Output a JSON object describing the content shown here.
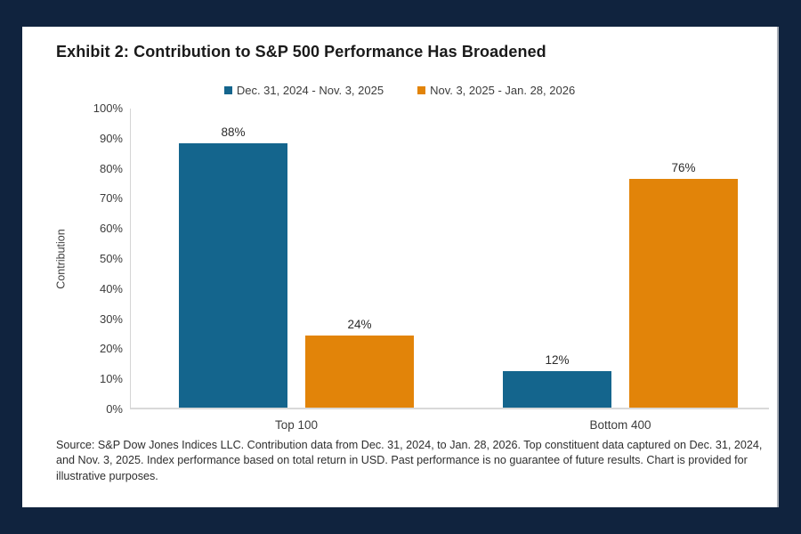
{
  "frame": {
    "background_color": "#10233e",
    "panel_color": "#ffffff"
  },
  "title": "Exhibit 2: Contribution to S&P 500 Performance Has Broadened",
  "legend": {
    "items": [
      {
        "label": "Dec. 31, 2024 - Nov. 3, 2025",
        "color": "#14658d"
      },
      {
        "label": "Nov. 3, 2025 - Jan. 28, 2026",
        "color": "#e28409"
      }
    ]
  },
  "chart_data": {
    "type": "bar",
    "title": "Exhibit 2: Contribution to S&P 500 Performance Has Broadened",
    "categories": [
      "Top 100",
      "Bottom 400"
    ],
    "series": [
      {
        "name": "Dec. 31, 2024 - Nov. 3, 2025",
        "color": "#14658d",
        "values": [
          88,
          12
        ]
      },
      {
        "name": "Nov. 3, 2025 - Jan. 28, 2026",
        "color": "#e28409",
        "values": [
          24,
          76
        ]
      }
    ],
    "value_labels": [
      [
        "88%",
        "12%"
      ],
      [
        "24%",
        "76%"
      ]
    ],
    "xlabel": "",
    "ylabel": "Contribution",
    "ylim": [
      0,
      100
    ],
    "ytick_step": 10,
    "ytick_format": "percent",
    "grid": false,
    "legend_position": "top"
  },
  "source_note": "Source: S&P Dow Jones Indices LLC. Contribution data from Dec. 31, 2024, to Jan. 28, 2026. Top constituent data captured on Dec. 31, 2024, and Nov. 3, 2025. Index performance based on total return in USD. Past performance is no guarantee of future results. Chart is provided for illustrative purposes."
}
